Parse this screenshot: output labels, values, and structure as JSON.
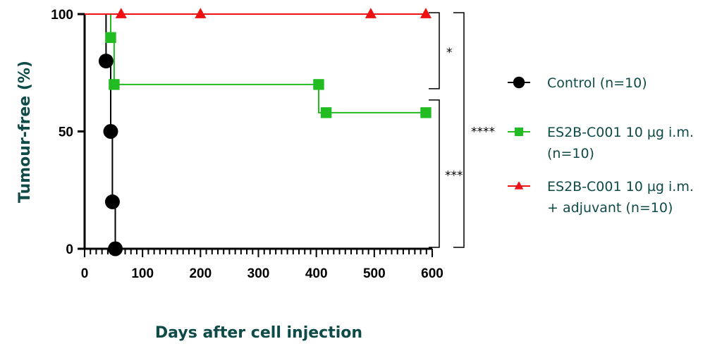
{
  "colors": {
    "text": "#0e4a47",
    "axis": "#000000",
    "control": "#000000",
    "green": "#22bb22",
    "red": "#ee1111"
  },
  "chart_data": {
    "type": "line",
    "subtype": "kaplan-meier",
    "xlabel": "Days after cell injection",
    "ylabel": "Tumour-free (%)",
    "xlim": [
      0,
      600
    ],
    "ylim": [
      0,
      100
    ],
    "xticks": [
      0,
      100,
      200,
      300,
      400,
      500,
      600
    ],
    "yticks": [
      0,
      50,
      100
    ],
    "legend_position": "right",
    "series": [
      {
        "key": "control",
        "legend": [
          "Control (n=10)"
        ],
        "marker": "circle",
        "color": "#000000",
        "steps": [
          [
            0,
            100
          ],
          [
            37,
            100
          ],
          [
            37,
            80
          ],
          [
            45,
            80
          ],
          [
            45,
            50
          ],
          [
            48,
            50
          ],
          [
            48,
            20
          ],
          [
            53,
            20
          ],
          [
            53,
            0
          ]
        ],
        "points": [
          [
            37,
            80
          ],
          [
            45,
            50
          ],
          [
            48,
            20
          ],
          [
            53,
            0
          ]
        ]
      },
      {
        "key": "adjuvant_free",
        "legend": [
          "ES2B-C001 10 µg i.m.",
          "(n=10)"
        ],
        "marker": "square",
        "color": "#22bb22",
        "steps": [
          [
            0,
            100
          ],
          [
            45,
            100
          ],
          [
            45,
            90
          ],
          [
            51,
            90
          ],
          [
            51,
            70
          ],
          [
            404,
            70
          ],
          [
            404,
            58
          ],
          [
            589,
            58
          ]
        ],
        "points": [
          [
            45,
            90
          ],
          [
            51,
            70
          ],
          [
            404,
            70
          ],
          [
            417,
            58
          ],
          [
            589,
            58
          ]
        ]
      },
      {
        "key": "adjuvant",
        "legend": [
          "ES2B-C001 10 µg i.m.",
          "+ adjuvant (n=10)"
        ],
        "marker": "triangle",
        "color": "#ee1111",
        "steps": [
          [
            0,
            100
          ],
          [
            589,
            100
          ]
        ],
        "points": [
          [
            63,
            100
          ],
          [
            200,
            100
          ],
          [
            494,
            100
          ],
          [
            589,
            100
          ]
        ]
      }
    ],
    "significance": [
      {
        "label": "*",
        "from": 100,
        "to": 70
      },
      {
        "label": "***",
        "from": 70,
        "to": 0
      },
      {
        "label": "****",
        "from": 100,
        "to": 0
      }
    ]
  }
}
